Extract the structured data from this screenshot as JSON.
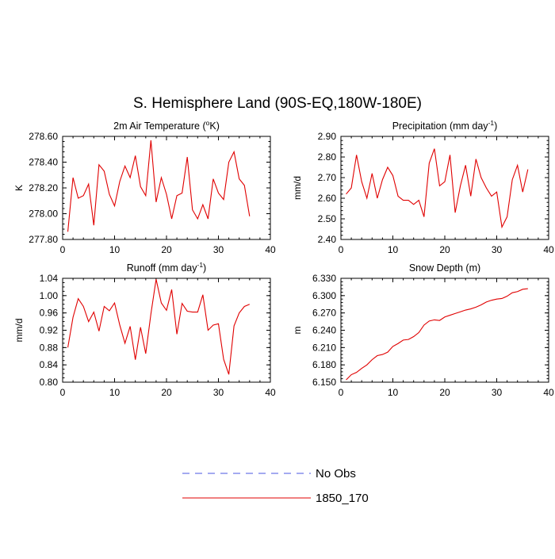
{
  "figure": {
    "title": "S. Hemisphere Land (90S-EQ,180W-180E)"
  },
  "chart_data": [
    {
      "type": "line",
      "title_parts": [
        "2m Air Temperature (",
        "o",
        "K)"
      ],
      "ylabel": "K",
      "xlim": [
        0,
        40
      ],
      "ylim": [
        277.8,
        278.6
      ],
      "xticks": [
        0,
        10,
        20,
        30,
        40
      ],
      "yticks": [
        277.8,
        278.0,
        278.2,
        278.4,
        278.6
      ],
      "ytick_labels": [
        "277.80",
        "278.00",
        "278.20",
        "278.40",
        "278.60"
      ],
      "yminor_step": 0.04,
      "x": [
        1,
        2,
        3,
        4,
        5,
        6,
        7,
        8,
        9,
        10,
        11,
        12,
        13,
        14,
        15,
        16,
        17,
        18,
        19,
        20,
        21,
        22,
        23,
        24,
        25,
        26,
        27,
        28,
        29,
        30,
        31,
        32,
        33,
        34,
        35,
        36
      ],
      "series": [
        {
          "name": "1850_170",
          "values": [
            277.86,
            278.28,
            278.12,
            278.14,
            278.23,
            277.91,
            278.38,
            278.33,
            278.15,
            278.06,
            278.25,
            278.37,
            278.28,
            278.45,
            278.21,
            278.14,
            278.57,
            278.09,
            278.28,
            278.15,
            277.96,
            278.14,
            278.16,
            278.44,
            278.03,
            277.96,
            278.07,
            277.96,
            278.27,
            278.16,
            278.11,
            278.4,
            278.48,
            278.27,
            278.22,
            277.98
          ]
        }
      ]
    },
    {
      "type": "line",
      "title_parts": [
        "Precipitation (mm day",
        "-1",
        ")"
      ],
      "ylabel": "mm/d",
      "xlim": [
        0,
        40
      ],
      "ylim": [
        2.4,
        2.9
      ],
      "xticks": [
        0,
        10,
        20,
        30,
        40
      ],
      "yticks": [
        2.4,
        2.5,
        2.6,
        2.7,
        2.8,
        2.9
      ],
      "ytick_labels": [
        "2.40",
        "2.50",
        "2.60",
        "2.70",
        "2.80",
        "2.90"
      ],
      "yminor_step": 0.02,
      "x": [
        1,
        2,
        3,
        4,
        5,
        6,
        7,
        8,
        9,
        10,
        11,
        12,
        13,
        14,
        15,
        16,
        17,
        18,
        19,
        20,
        21,
        22,
        23,
        24,
        25,
        26,
        27,
        28,
        29,
        30,
        31,
        32,
        33,
        34,
        35,
        36
      ],
      "series": [
        {
          "name": "1850_170",
          "values": [
            2.62,
            2.65,
            2.81,
            2.68,
            2.6,
            2.72,
            2.6,
            2.69,
            2.75,
            2.71,
            2.61,
            2.59,
            2.59,
            2.57,
            2.59,
            2.51,
            2.77,
            2.84,
            2.66,
            2.68,
            2.81,
            2.53,
            2.66,
            2.76,
            2.61,
            2.79,
            2.7,
            2.65,
            2.61,
            2.63,
            2.46,
            2.51,
            2.69,
            2.76,
            2.63,
            2.74
          ]
        }
      ]
    },
    {
      "type": "line",
      "title_parts": [
        "Runoff (mm day",
        "-1",
        ")"
      ],
      "ylabel": "mm/d",
      "xlim": [
        0,
        40
      ],
      "ylim": [
        0.8,
        1.04
      ],
      "xticks": [
        0,
        10,
        20,
        30,
        40
      ],
      "yticks": [
        0.8,
        0.84,
        0.88,
        0.92,
        0.96,
        1.0,
        1.04
      ],
      "ytick_labels": [
        "0.80",
        "0.84",
        "0.88",
        "0.92",
        "0.96",
        "1.00",
        "1.04"
      ],
      "yminor_step": 0.01,
      "x": [
        1,
        2,
        3,
        4,
        5,
        6,
        7,
        8,
        9,
        10,
        11,
        12,
        13,
        14,
        15,
        16,
        17,
        18,
        19,
        20,
        21,
        22,
        23,
        24,
        25,
        26,
        27,
        28,
        29,
        30,
        31,
        32,
        33,
        34,
        35,
        36
      ],
      "series": [
        {
          "name": "1850_170",
          "values": [
            0.88,
            0.95,
            0.993,
            0.975,
            0.94,
            0.962,
            0.918,
            0.975,
            0.965,
            0.983,
            0.932,
            0.89,
            0.929,
            0.852,
            0.927,
            0.866,
            0.958,
            1.038,
            0.983,
            0.966,
            1.014,
            0.911,
            0.982,
            0.964,
            0.962,
            0.962,
            1.002,
            0.92,
            0.932,
            0.935,
            0.853,
            0.818,
            0.93,
            0.96,
            0.975,
            0.98
          ]
        }
      ]
    },
    {
      "type": "line",
      "title_parts": [
        "Snow Depth (m)"
      ],
      "ylabel": "m",
      "xlim": [
        0,
        40
      ],
      "ylim": [
        6.15,
        6.33
      ],
      "xticks": [
        0,
        10,
        20,
        30,
        40
      ],
      "yticks": [
        6.15,
        6.18,
        6.21,
        6.24,
        6.27,
        6.3,
        6.33
      ],
      "ytick_labels": [
        "6.150",
        "6.180",
        "6.210",
        "6.240",
        "6.270",
        "6.300",
        "6.330"
      ],
      "yminor_step": 0.006,
      "x": [
        1,
        2,
        3,
        4,
        5,
        6,
        7,
        8,
        9,
        10,
        11,
        12,
        13,
        14,
        15,
        16,
        17,
        18,
        19,
        20,
        21,
        22,
        23,
        24,
        25,
        26,
        27,
        28,
        29,
        30,
        31,
        32,
        33,
        34,
        35,
        36
      ],
      "series": [
        {
          "name": "1850_170",
          "values": [
            6.154,
            6.163,
            6.167,
            6.174,
            6.18,
            6.189,
            6.196,
            6.198,
            6.202,
            6.212,
            6.217,
            6.223,
            6.224,
            6.229,
            6.236,
            6.249,
            6.256,
            6.258,
            6.257,
            6.263,
            6.266,
            6.269,
            6.272,
            6.275,
            6.277,
            6.28,
            6.284,
            6.289,
            6.292,
            6.294,
            6.295,
            6.299,
            6.305,
            6.307,
            6.311,
            6.312
          ]
        }
      ]
    }
  ],
  "legend": {
    "items": [
      {
        "label": "No Obs",
        "color": "#4a55e0",
        "style": "dashed"
      },
      {
        "label": "1850_170",
        "color": "#e00000",
        "style": "solid"
      }
    ]
  }
}
